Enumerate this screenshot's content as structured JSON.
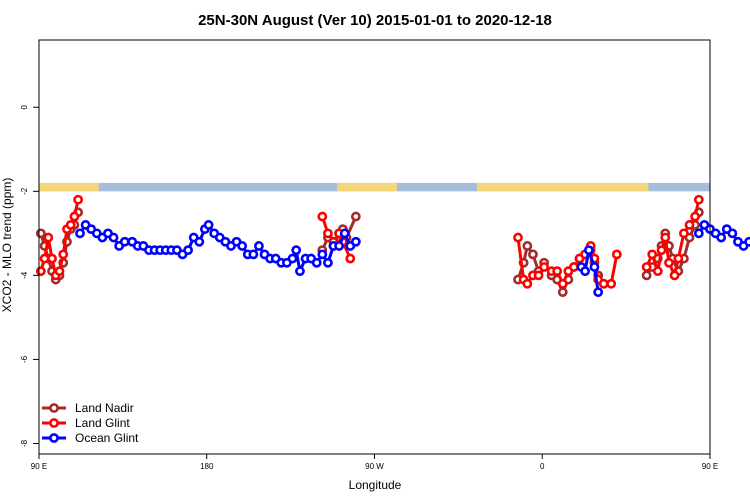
{
  "chart_data": {
    "type": "line",
    "title": "25N-30N August (Ver 10)   2015-01-01 to 2020-12-18",
    "xlabel": "Longitude",
    "ylabel": "XCO2 - MLO trend (ppm)",
    "xlim": [
      90,
      450
    ],
    "ylim": [
      -8.25,
      1.6
    ],
    "yticks": [
      0,
      -2,
      -4,
      -6,
      -8
    ],
    "xticks": [
      {
        "value": 90,
        "label": "90 E"
      },
      {
        "value": 180,
        "label": "180"
      },
      {
        "value": 270,
        "label": "90 W"
      },
      {
        "value": 360,
        "label": "0"
      },
      {
        "value": 450,
        "label": "90 E"
      },
      {
        "value": 540,
        "label": "180"
      }
    ],
    "legend_position": "bottom-left",
    "land_sea_band": {
      "y_range": [
        -1.8,
        -2.0
      ],
      "ocean_color": "#a6bddb",
      "land_color": "#f5d77a",
      "land_segments": [
        [
          88,
          122
        ],
        [
          250,
          282
        ],
        [
          325,
          417
        ]
      ]
    },
    "series": [
      {
        "name": "Land Nadir",
        "color": "#a52a2a",
        "segments": [
          [
            [
              91,
              -3.0
            ],
            [
              93,
              -3.3
            ],
            [
              95,
              -3.6
            ],
            [
              97,
              -3.9
            ],
            [
              99,
              -4.1
            ],
            [
              101,
              -4.0
            ],
            [
              103,
              -3.7
            ],
            [
              105,
              -3.2
            ],
            [
              107,
              -2.9
            ],
            [
              109,
              -2.8
            ],
            [
              111,
              -2.5
            ]
          ],
          [
            [
              242,
              -3.4
            ],
            [
              245,
              -3.1
            ],
            [
              248,
              -3.3
            ],
            [
              251,
              -3.0
            ],
            [
              253,
              -2.9
            ],
            [
              255,
              -3.1
            ],
            [
              260,
              -2.6
            ]
          ],
          [
            [
              347,
              -4.1
            ],
            [
              350,
              -3.7
            ],
            [
              352,
              -3.3
            ],
            [
              355,
              -3.5
            ],
            [
              358,
              -3.9
            ],
            [
              361,
              -3.7
            ],
            [
              365,
              -4.0
            ],
            [
              368,
              -4.1
            ],
            [
              371,
              -4.4
            ],
            [
              374,
              -4.1
            ],
            [
              377,
              -3.8
            ],
            [
              380,
              -3.6
            ],
            [
              383,
              -3.5
            ],
            [
              386,
              -3.4
            ],
            [
              388,
              -3.7
            ],
            [
              390,
              -4.0
            ],
            [
              393,
              -4.2
            ]
          ],
          [
            [
              416,
              -4.0
            ],
            [
              419,
              -3.8
            ],
            [
              422,
              -3.6
            ],
            [
              424,
              -3.3
            ],
            [
              426,
              -3.0
            ],
            [
              428,
              -3.3
            ],
            [
              430,
              -3.6
            ],
            [
              433,
              -3.9
            ],
            [
              436,
              -3.6
            ],
            [
              439,
              -3.1
            ],
            [
              442,
              -2.8
            ],
            [
              444,
              -2.5
            ]
          ]
        ]
      },
      {
        "name": "Land Glint",
        "color": "#ff0000",
        "segments": [
          [
            [
              91,
              -3.9
            ],
            [
              93,
              -3.6
            ],
            [
              95,
              -3.1
            ],
            [
              97,
              -3.6
            ],
            [
              99,
              -4.0
            ],
            [
              101,
              -3.9
            ],
            [
              103,
              -3.5
            ],
            [
              105,
              -2.9
            ],
            [
              107,
              -2.8
            ],
            [
              109,
              -2.6
            ],
            [
              111,
              -2.2
            ]
          ],
          [
            [
              242,
              -2.6
            ],
            [
              245,
              -3.0
            ],
            [
              248,
              -3.2
            ],
            [
              251,
              -3.0
            ],
            [
              253,
              -3.2
            ],
            [
              257,
              -3.6
            ]
          ],
          [
            [
              347,
              -3.1
            ],
            [
              350,
              -4.1
            ],
            [
              352,
              -4.2
            ],
            [
              355,
              -4.0
            ],
            [
              358,
              -4.0
            ],
            [
              361,
              -3.8
            ],
            [
              365,
              -3.9
            ],
            [
              368,
              -3.9
            ],
            [
              371,
              -4.2
            ],
            [
              374,
              -3.9
            ],
            [
              377,
              -3.8
            ],
            [
              380,
              -3.6
            ],
            [
              383,
              -3.5
            ],
            [
              386,
              -3.3
            ],
            [
              388,
              -3.6
            ],
            [
              390,
              -4.1
            ],
            [
              393,
              -4.2
            ],
            [
              397,
              -4.2
            ],
            [
              400,
              -3.5
            ]
          ],
          [
            [
              416,
              -3.8
            ],
            [
              419,
              -3.5
            ],
            [
              422,
              -3.9
            ],
            [
              424,
              -3.4
            ],
            [
              426,
              -3.1
            ],
            [
              428,
              -3.7
            ],
            [
              431,
              -4.0
            ],
            [
              433,
              -3.6
            ],
            [
              436,
              -3.0
            ],
            [
              439,
              -2.8
            ],
            [
              442,
              -2.6
            ],
            [
              444,
              -2.2
            ]
          ]
        ]
      },
      {
        "name": "Ocean Glint",
        "color": "#0000ff",
        "segments": [
          [
            [
              112,
              -3.0
            ],
            [
              115,
              -2.8
            ],
            [
              118,
              -2.9
            ],
            [
              121,
              -3.0
            ],
            [
              124,
              -3.1
            ],
            [
              127,
              -3.0
            ],
            [
              130,
              -3.1
            ],
            [
              133,
              -3.3
            ],
            [
              136,
              -3.2
            ],
            [
              140,
              -3.2
            ],
            [
              143,
              -3.3
            ],
            [
              146,
              -3.3
            ],
            [
              149,
              -3.4
            ],
            [
              152,
              -3.4
            ],
            [
              155,
              -3.4
            ],
            [
              158,
              -3.4
            ],
            [
              161,
              -3.4
            ],
            [
              164,
              -3.4
            ],
            [
              167,
              -3.5
            ],
            [
              170,
              -3.4
            ],
            [
              173,
              -3.1
            ],
            [
              176,
              -3.2
            ],
            [
              179,
              -2.9
            ],
            [
              181,
              -2.8
            ],
            [
              184,
              -3.0
            ],
            [
              187,
              -3.1
            ],
            [
              190,
              -3.2
            ],
            [
              193,
              -3.3
            ],
            [
              196,
              -3.2
            ],
            [
              199,
              -3.3
            ],
            [
              202,
              -3.5
            ],
            [
              205,
              -3.5
            ],
            [
              208,
              -3.3
            ],
            [
              211,
              -3.5
            ],
            [
              214,
              -3.6
            ],
            [
              217,
              -3.6
            ],
            [
              220,
              -3.7
            ],
            [
              223,
              -3.7
            ],
            [
              226,
              -3.6
            ],
            [
              228,
              -3.4
            ],
            [
              230,
              -3.9
            ],
            [
              233,
              -3.6
            ],
            [
              236,
              -3.6
            ],
            [
              239,
              -3.7
            ],
            [
              242,
              -3.5
            ],
            [
              245,
              -3.7
            ],
            [
              248,
              -3.3
            ],
            [
              251,
              -3.3
            ],
            [
              254,
              -3.0
            ],
            [
              257,
              -3.3
            ],
            [
              260,
              -3.2
            ]
          ],
          [
            [
              381,
              -3.8
            ],
            [
              383,
              -3.9
            ],
            [
              385,
              -3.4
            ],
            [
              388,
              -3.8
            ],
            [
              390,
              -4.4
            ]
          ],
          [
            [
              444,
              -3.0
            ],
            [
              447,
              -2.8
            ],
            [
              450,
              -2.9
            ],
            [
              453,
              -3.0
            ],
            [
              456,
              -3.1
            ],
            [
              459,
              -2.9
            ],
            [
              462,
              -3.0
            ],
            [
              465,
              -3.2
            ],
            [
              468,
              -3.3
            ],
            [
              471,
              -3.2
            ],
            [
              474,
              -3.2
            ],
            [
              477,
              -3.3
            ]
          ]
        ]
      }
    ]
  }
}
